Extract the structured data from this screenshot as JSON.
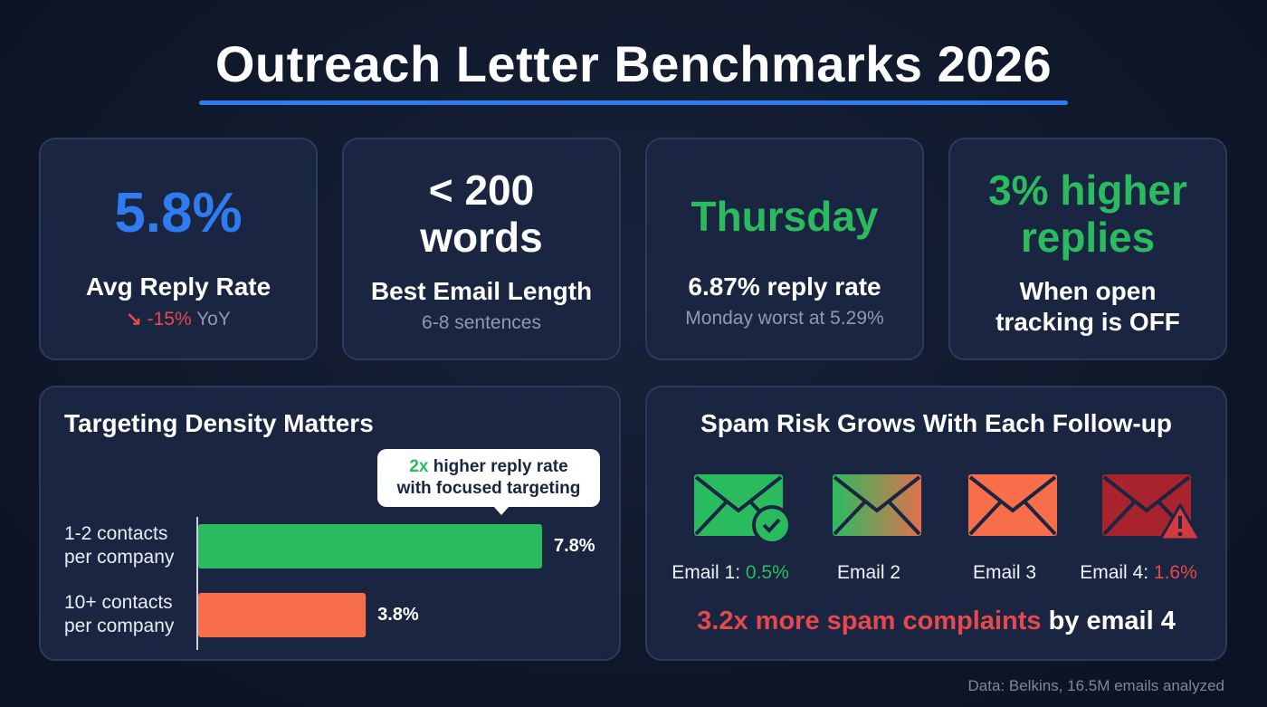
{
  "title": "Outreach Letter Benchmarks 2026",
  "colors": {
    "blue": "#2f7bf0",
    "green": "#2bbb5f",
    "orange": "#f96e4a",
    "red": "#e5484d",
    "darkred": "#b0232d"
  },
  "cards": [
    {
      "value": "5.8%",
      "label": "Avg Reply Rate",
      "trend_icon": "arrow-down-right-icon",
      "trend": "-15%",
      "trend_suffix": "YoY"
    },
    {
      "value_line1": "< 200",
      "value_line2": "words",
      "label": "Best Email Length",
      "sub": "6-8 sentences"
    },
    {
      "value": "Thursday",
      "label": "6.87% reply rate",
      "sub": "Monday worst at 5.29%"
    },
    {
      "value_line1": "3% higher",
      "value_line2": "replies",
      "label_line1": "When open",
      "label_line2": "tracking is OFF"
    }
  ],
  "targeting": {
    "title": "Targeting Density Matters",
    "callout_highlight": "2x",
    "callout_line1": " higher reply rate",
    "callout_line2": "with focused targeting"
  },
  "chart_data": {
    "type": "bar",
    "orientation": "horizontal",
    "title": "Targeting Density Matters",
    "categories": [
      "1-2 contacts per company",
      "10+ contacts per company"
    ],
    "category_lines": [
      [
        "1-2 contacts",
        "per company"
      ],
      [
        "10+ contacts",
        "per company"
      ]
    ],
    "values": [
      7.8,
      3.8
    ],
    "value_labels": [
      "7.8%",
      "3.8%"
    ],
    "colors": [
      "#2bbb5f",
      "#f96e4a"
    ],
    "xlim": [
      0,
      7.8
    ],
    "unit": "%",
    "grid": false
  },
  "spam": {
    "title": "Spam Risk Grows With Each Follow-up",
    "emails": [
      {
        "label": "Email 1:",
        "value": "0.5%",
        "badge": "check-icon"
      },
      {
        "label": "Email 2",
        "value": ""
      },
      {
        "label": "Email 3",
        "value": ""
      },
      {
        "label": "Email 4:",
        "value": "1.6%",
        "badge": "warning-icon"
      }
    ],
    "summary_highlight": "3.2x more spam complaints",
    "summary_rest": " by email 4"
  },
  "footer": "Data: Belkins, 16.5M emails analyzed"
}
